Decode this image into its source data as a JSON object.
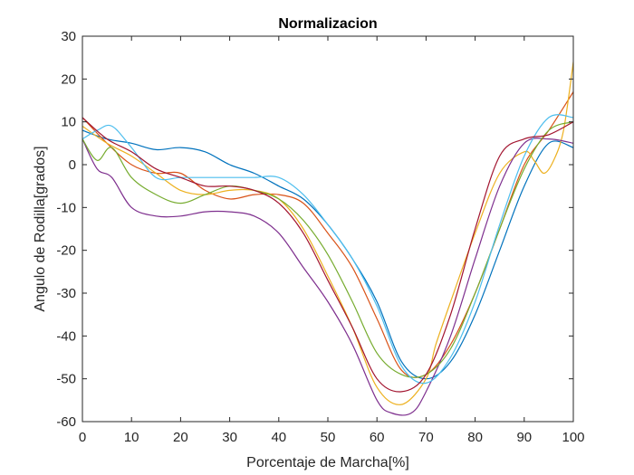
{
  "chart_data": {
    "type": "line",
    "title": "Normalizacion",
    "xlabel": "Porcentaje de Marcha[%]",
    "ylabel": "Angulo de Rodilla[grados]",
    "xlim": [
      0,
      100
    ],
    "ylim": [
      -60,
      30
    ],
    "xticks": [
      0,
      10,
      20,
      30,
      40,
      50,
      60,
      70,
      80,
      90,
      100
    ],
    "yticks": [
      -60,
      -50,
      -40,
      -30,
      -20,
      -10,
      0,
      10,
      20,
      30
    ],
    "grid": false,
    "legend": "none",
    "series": [
      {
        "color": "#0072BD",
        "x": [
          0,
          5,
          10,
          15,
          20,
          25,
          30,
          35,
          40,
          45,
          50,
          55,
          60,
          65,
          70,
          75,
          80,
          85,
          90,
          95,
          100
        ],
        "y": [
          8,
          6,
          5,
          3.5,
          4,
          3,
          0,
          -2,
          -5,
          -8,
          -14,
          -22,
          -32,
          -46,
          -50,
          -46,
          -35,
          -20,
          -5,
          5,
          4
        ]
      },
      {
        "color": "#D95319",
        "x": [
          0,
          5,
          10,
          15,
          20,
          25,
          30,
          35,
          40,
          45,
          50,
          55,
          60,
          65,
          70,
          75,
          80,
          85,
          90,
          95,
          100
        ],
        "y": [
          11,
          5,
          0,
          -2,
          -2,
          -6,
          -8,
          -7,
          -7,
          -9,
          -16,
          -24,
          -36,
          -48,
          -49,
          -42,
          -30,
          -15,
          0,
          8,
          17
        ]
      },
      {
        "color": "#EDB120",
        "x": [
          0,
          5,
          10,
          15,
          20,
          25,
          30,
          35,
          40,
          45,
          50,
          55,
          60,
          65,
          70,
          72,
          75,
          80,
          85,
          90,
          92,
          94,
          96,
          98,
          100
        ],
        "y": [
          9,
          5,
          2,
          -2,
          -6,
          -7,
          -6,
          -6,
          -8,
          -15,
          -26,
          -38,
          -52,
          -56,
          -50,
          -42,
          -32,
          -16,
          -2,
          3,
          1,
          -2,
          1,
          8,
          24
        ]
      },
      {
        "color": "#7E2F8E",
        "x": [
          0,
          3,
          6,
          10,
          15,
          20,
          25,
          30,
          35,
          40,
          45,
          50,
          55,
          60,
          63,
          67,
          70,
          75,
          80,
          85,
          90,
          95,
          100
        ],
        "y": [
          6,
          -1,
          -3,
          -10,
          -12,
          -12,
          -11,
          -11,
          -12,
          -16,
          -24,
          -32,
          -42,
          -55,
          -58,
          -58,
          -53,
          -40,
          -22,
          -5,
          5,
          6,
          5
        ]
      },
      {
        "color": "#77AC30",
        "x": [
          0,
          3,
          6,
          10,
          15,
          20,
          25,
          30,
          35,
          40,
          45,
          50,
          55,
          60,
          65,
          70,
          75,
          80,
          85,
          90,
          95,
          100
        ],
        "y": [
          6,
          1,
          4,
          -3,
          -7,
          -9,
          -7,
          -5,
          -6,
          -8,
          -13,
          -21,
          -32,
          -44,
          -49,
          -49,
          -43,
          -30,
          -15,
          -1,
          8,
          10
        ]
      },
      {
        "color": "#4DBEEE",
        "x": [
          0,
          3,
          6,
          10,
          15,
          20,
          25,
          30,
          35,
          40,
          45,
          50,
          55,
          60,
          65,
          70,
          75,
          80,
          85,
          90,
          95,
          100
        ],
        "y": [
          6,
          8,
          9,
          4,
          -3,
          -3,
          -3,
          -3,
          -3,
          -3,
          -7,
          -14,
          -22,
          -33,
          -47,
          -51,
          -45,
          -32,
          -14,
          2,
          11,
          11
        ]
      },
      {
        "color": "#A2142F",
        "x": [
          0,
          5,
          10,
          15,
          20,
          25,
          30,
          35,
          40,
          45,
          50,
          55,
          60,
          65,
          70,
          75,
          80,
          85,
          90,
          95,
          100
        ],
        "y": [
          11,
          6,
          3,
          -1,
          -3,
          -5,
          -5,
          -6,
          -9,
          -16,
          -27,
          -38,
          -50,
          -53,
          -49,
          -35,
          -15,
          2,
          6,
          7,
          10
        ]
      }
    ]
  }
}
